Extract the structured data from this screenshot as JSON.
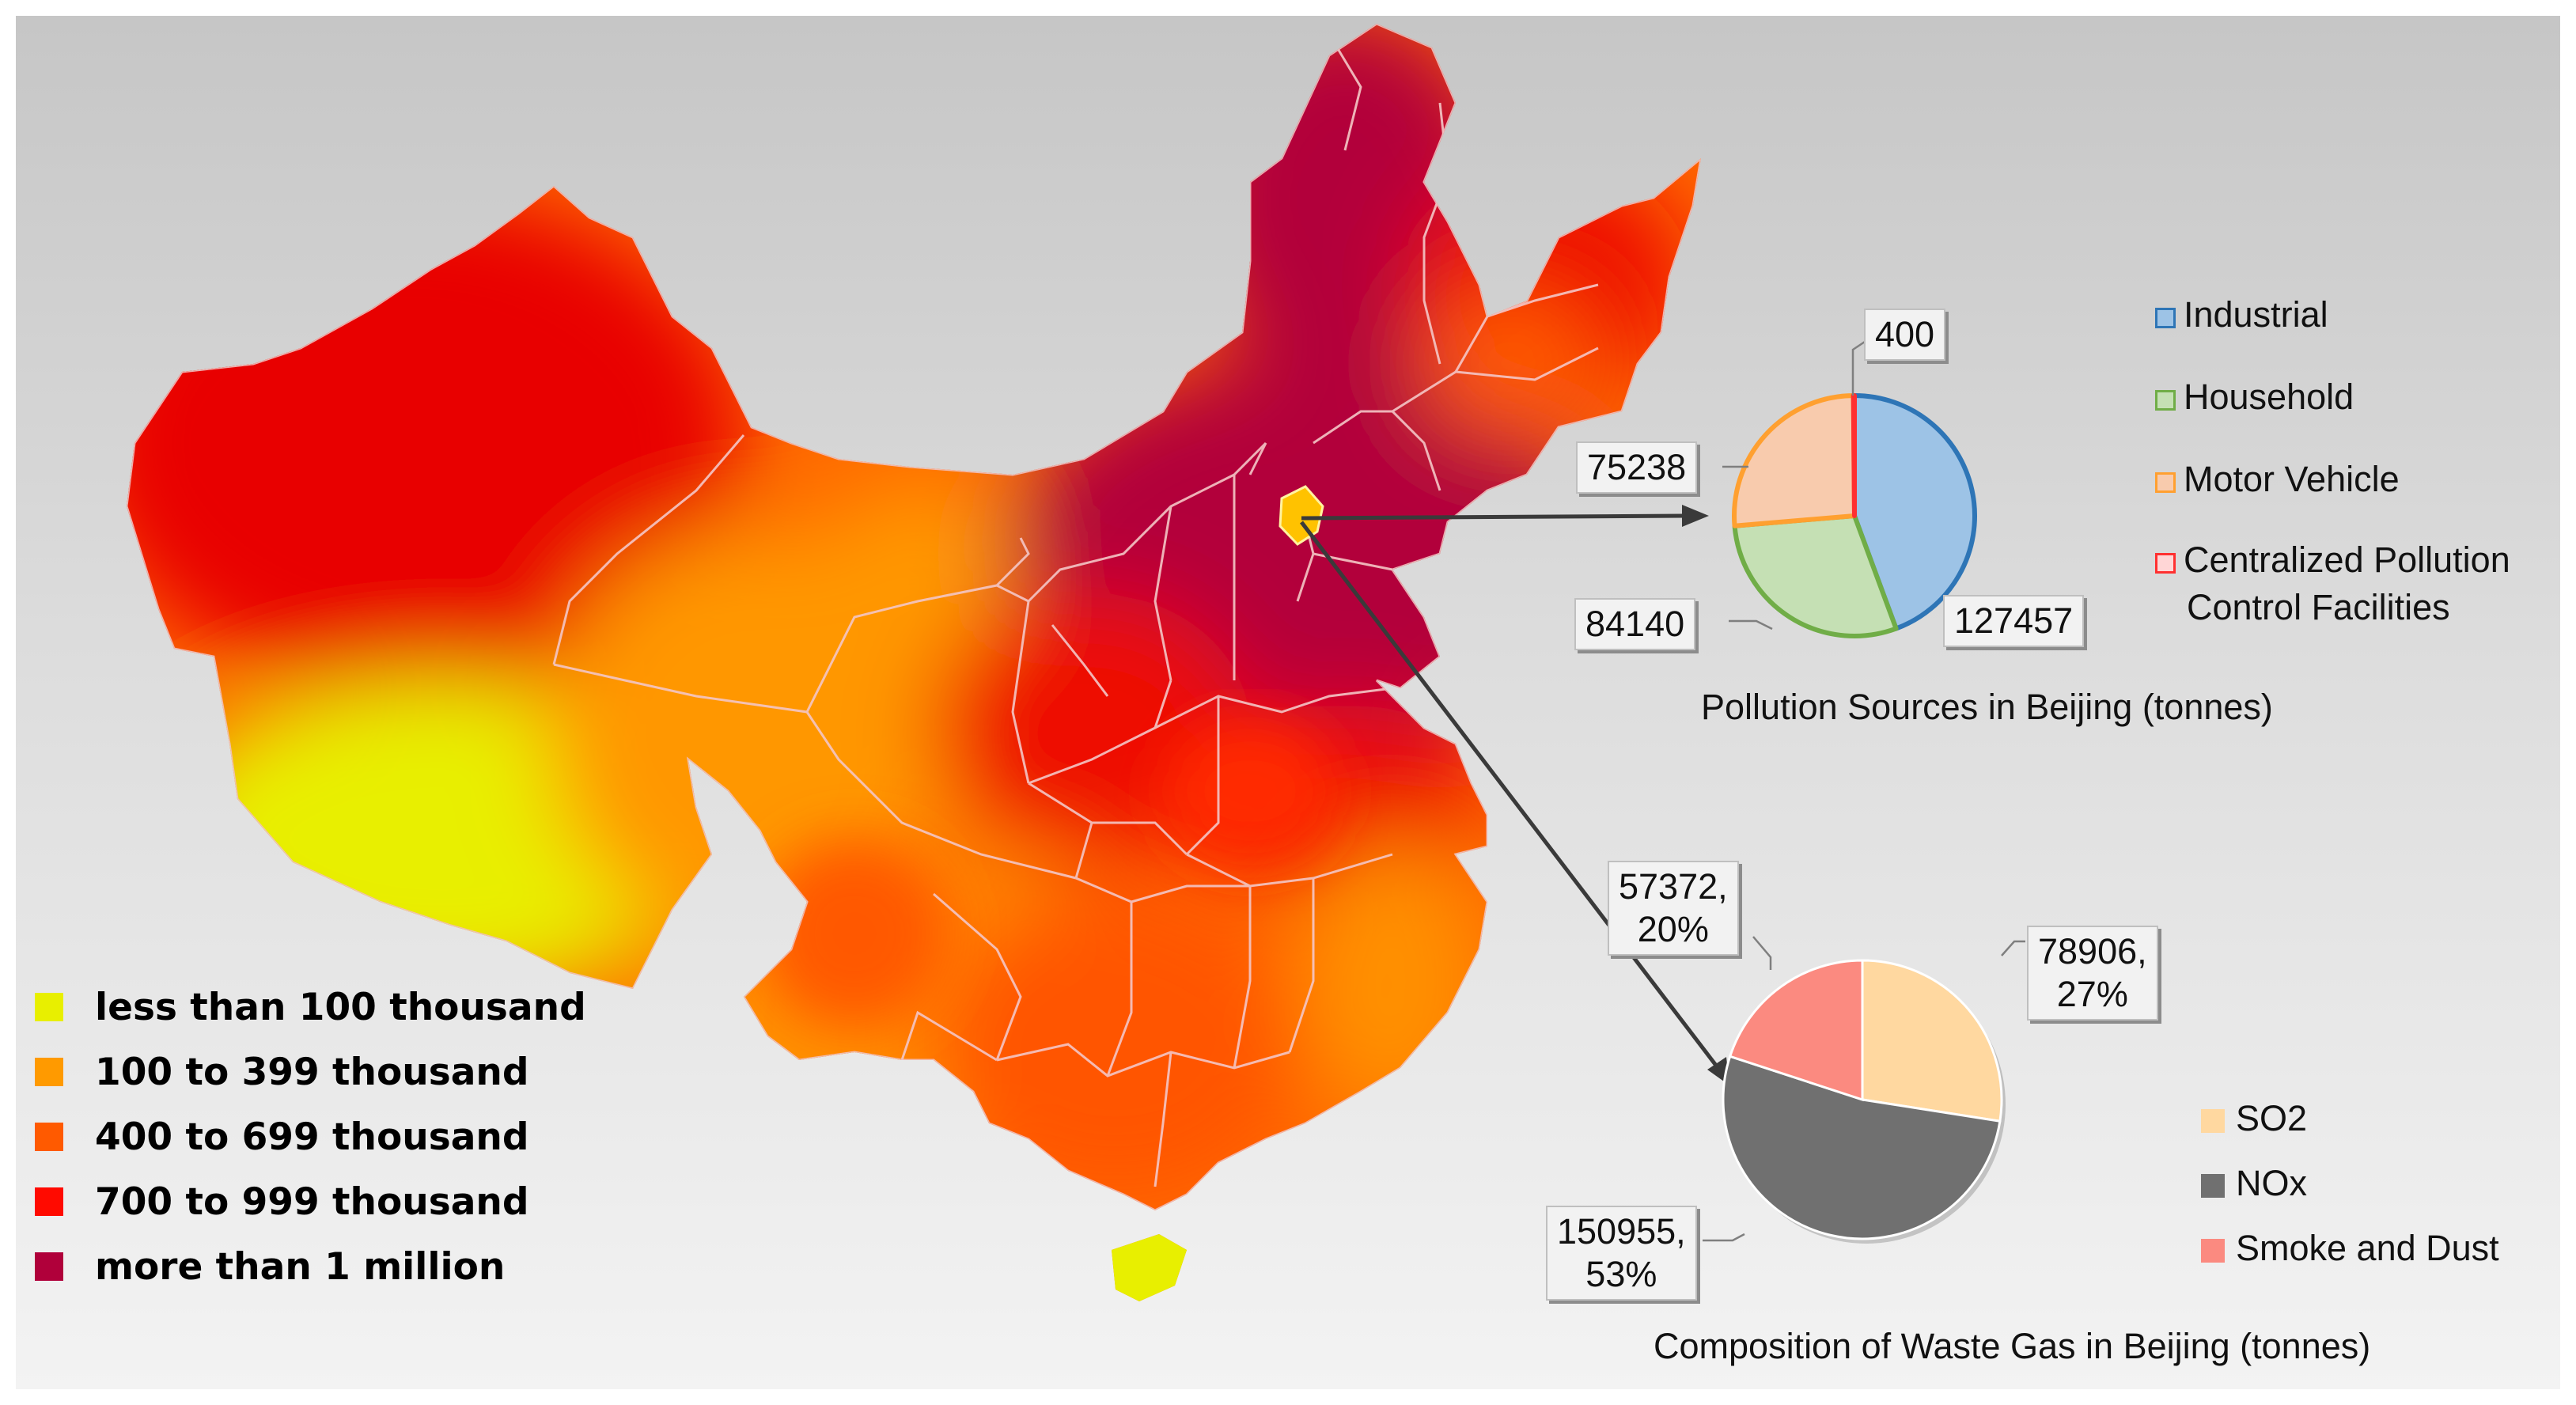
{
  "map": {
    "legend": [
      {
        "label": "less than 100 thousand",
        "color": "#e8ef00"
      },
      {
        "label": "100 to 399 thousand",
        "color": "#ff9a00"
      },
      {
        "label": "400 to 699 thousand",
        "color": "#ff5a00"
      },
      {
        "label": "700 to 999 thousand",
        "color": "#ff0a00"
      },
      {
        "label": "more than 1 million",
        "color": "#b0003a"
      }
    ],
    "highlight_region": "Beijing"
  },
  "chart_data": [
    {
      "type": "pie",
      "title": "Pollution Sources in Beijing (tonnes)",
      "categories": [
        "Industrial",
        "Household",
        "Motor Vehicle",
        "Centralized Pollution Control Facilities"
      ],
      "values": [
        127457,
        84140,
        75238,
        400
      ],
      "value_labels": [
        "127457",
        "84140",
        "75238",
        "400"
      ],
      "legend_labels": [
        "Industrial",
        "Household",
        "Motor Vehicle",
        "Centralized Pollution",
        "Control Facilities"
      ],
      "colors": [
        "#9dc3e6",
        "#c5e0b4",
        "#f8cbad",
        "#ff9999"
      ],
      "borders": [
        "#2e75b6",
        "#70ad47",
        "#ffa030",
        "#ff3030"
      ],
      "legend": "right"
    },
    {
      "type": "pie",
      "title": "Composition of Waste Gas in Beijing (tonnes)",
      "categories": [
        "SO2",
        "NOx",
        "Smoke and Dust"
      ],
      "values": [
        78906,
        150955,
        57372
      ],
      "percents": [
        27,
        53,
        20
      ],
      "value_labels": [
        [
          "78906,",
          "27%"
        ],
        [
          "150955,",
          "53%"
        ],
        [
          "57372,",
          "20%"
        ]
      ],
      "colors": [
        "#ffd8a0",
        "#707070",
        "#fb8a80"
      ],
      "legend": "right"
    }
  ]
}
